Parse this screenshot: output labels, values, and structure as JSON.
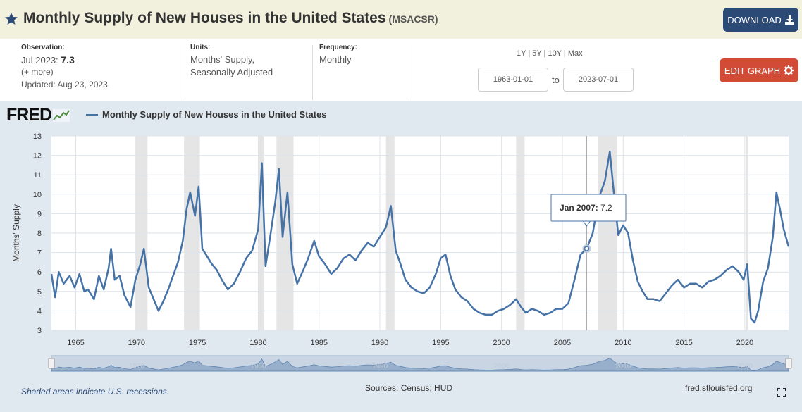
{
  "header": {
    "title": "Monthly Supply of New Houses in the United States",
    "series_id": "(MSACSR)",
    "download_label": "DOWNLOAD"
  },
  "meta": {
    "observation_label": "Observation:",
    "observation_date": "Jul 2023:",
    "observation_value": "7.3",
    "more": "(+ more)",
    "updated": "Updated: Aug 23, 2023",
    "units_label": "Units:",
    "units_line1": "Months' Supply,",
    "units_line2": "Seasonally Adjusted",
    "frequency_label": "Frequency:",
    "frequency": "Monthly"
  },
  "range": {
    "options": [
      "1Y",
      "5Y",
      "10Y",
      "Max"
    ],
    "start": "1963-01-01",
    "to": "to",
    "end": "2023-07-01"
  },
  "edit_label": "EDIT GRAPH",
  "chart_brand": "FRED",
  "footer": {
    "note": "Shaded areas indicate U.S. recessions.",
    "sources": "Sources: Census; HUD",
    "site": "fred.stlouisfed.org"
  },
  "colors": {
    "line": "#4572a7",
    "recession": "#e5e5e5",
    "header_bg": "#f1f1dd",
    "download": "#2c4a76",
    "edit": "#d24b36"
  },
  "chart_data": {
    "type": "line",
    "title": "Monthly Supply of New Houses in the United States",
    "ylabel": "Months' Supply",
    "xlabel": "",
    "ylim": [
      3,
      13
    ],
    "xlim": [
      1963.0,
      2023.6
    ],
    "yticks": [
      3,
      4,
      5,
      6,
      7,
      8,
      9,
      10,
      11,
      12,
      13
    ],
    "xticks": [
      1965,
      1970,
      1975,
      1980,
      1985,
      1990,
      1995,
      2000,
      2005,
      2010,
      2015,
      2020
    ],
    "navigator_ticks": [
      "1970",
      "1980",
      "1990",
      "2000",
      "2010",
      "2020"
    ],
    "grid": true,
    "tooltip": {
      "label": "Jan 2007:",
      "value": "7.2",
      "x": 2007.0
    },
    "recessions": [
      [
        1969.9,
        1970.9
      ],
      [
        1973.9,
        1975.2
      ],
      [
        1980.0,
        1980.5
      ],
      [
        1981.5,
        1982.9
      ],
      [
        1990.5,
        1991.2
      ],
      [
        2001.2,
        2001.9
      ],
      [
        2007.9,
        2009.5
      ],
      [
        2020.1,
        2020.3
      ]
    ],
    "series": [
      {
        "name": "Monthly Supply of New Houses in the United States",
        "points": [
          [
            1963.0,
            5.9
          ],
          [
            1963.3,
            4.7
          ],
          [
            1963.6,
            6.0
          ],
          [
            1964.0,
            5.4
          ],
          [
            1964.5,
            5.8
          ],
          [
            1964.9,
            5.2
          ],
          [
            1965.3,
            5.9
          ],
          [
            1965.7,
            5.0
          ],
          [
            1966.0,
            5.1
          ],
          [
            1966.5,
            4.6
          ],
          [
            1966.9,
            5.8
          ],
          [
            1967.3,
            5.1
          ],
          [
            1967.7,
            6.2
          ],
          [
            1967.9,
            7.2
          ],
          [
            1968.2,
            5.6
          ],
          [
            1968.6,
            5.8
          ],
          [
            1969.0,
            4.8
          ],
          [
            1969.5,
            4.2
          ],
          [
            1969.9,
            5.6
          ],
          [
            1970.3,
            6.4
          ],
          [
            1970.6,
            7.2
          ],
          [
            1971.0,
            5.2
          ],
          [
            1971.4,
            4.6
          ],
          [
            1971.8,
            4.0
          ],
          [
            1972.2,
            4.5
          ],
          [
            1972.6,
            5.1
          ],
          [
            1973.0,
            5.8
          ],
          [
            1973.4,
            6.5
          ],
          [
            1973.8,
            7.6
          ],
          [
            1974.1,
            9.2
          ],
          [
            1974.4,
            10.1
          ],
          [
            1974.8,
            8.9
          ],
          [
            1975.1,
            10.4
          ],
          [
            1975.4,
            7.2
          ],
          [
            1975.8,
            6.8
          ],
          [
            1976.2,
            6.4
          ],
          [
            1976.6,
            6.1
          ],
          [
            1977.0,
            5.6
          ],
          [
            1977.5,
            5.1
          ],
          [
            1978.0,
            5.4
          ],
          [
            1978.5,
            6.0
          ],
          [
            1979.0,
            6.7
          ],
          [
            1979.5,
            7.1
          ],
          [
            1980.0,
            8.2
          ],
          [
            1980.3,
            11.6
          ],
          [
            1980.6,
            6.3
          ],
          [
            1981.0,
            7.9
          ],
          [
            1981.4,
            9.6
          ],
          [
            1981.7,
            11.3
          ],
          [
            1982.0,
            7.8
          ],
          [
            1982.4,
            10.1
          ],
          [
            1982.8,
            6.4
          ],
          [
            1983.2,
            5.4
          ],
          [
            1983.7,
            6.1
          ],
          [
            1984.1,
            6.7
          ],
          [
            1984.6,
            7.6
          ],
          [
            1985.0,
            6.8
          ],
          [
            1985.5,
            6.4
          ],
          [
            1986.0,
            5.9
          ],
          [
            1986.5,
            6.2
          ],
          [
            1987.0,
            6.7
          ],
          [
            1987.5,
            6.9
          ],
          [
            1988.0,
            6.6
          ],
          [
            1988.5,
            7.1
          ],
          [
            1989.0,
            7.5
          ],
          [
            1989.5,
            7.3
          ],
          [
            1990.0,
            7.8
          ],
          [
            1990.5,
            8.3
          ],
          [
            1990.9,
            9.4
          ],
          [
            1991.3,
            7.1
          ],
          [
            1991.7,
            6.4
          ],
          [
            1992.1,
            5.6
          ],
          [
            1992.6,
            5.2
          ],
          [
            1993.1,
            5.0
          ],
          [
            1993.6,
            4.9
          ],
          [
            1994.1,
            5.2
          ],
          [
            1994.6,
            5.9
          ],
          [
            1995.0,
            6.7
          ],
          [
            1995.4,
            6.9
          ],
          [
            1995.8,
            5.8
          ],
          [
            1996.2,
            5.1
          ],
          [
            1996.7,
            4.7
          ],
          [
            1997.2,
            4.5
          ],
          [
            1997.7,
            4.1
          ],
          [
            1998.2,
            3.9
          ],
          [
            1998.7,
            3.8
          ],
          [
            1999.2,
            3.8
          ],
          [
            1999.7,
            4.0
          ],
          [
            2000.2,
            4.1
          ],
          [
            2000.7,
            4.3
          ],
          [
            2001.2,
            4.6
          ],
          [
            2001.6,
            4.2
          ],
          [
            2002.0,
            3.9
          ],
          [
            2002.5,
            4.1
          ],
          [
            2003.0,
            4.0
          ],
          [
            2003.5,
            3.8
          ],
          [
            2004.0,
            3.9
          ],
          [
            2004.5,
            4.1
          ],
          [
            2005.0,
            4.1
          ],
          [
            2005.5,
            4.4
          ],
          [
            2006.0,
            5.6
          ],
          [
            2006.5,
            6.9
          ],
          [
            2007.0,
            7.2
          ],
          [
            2007.5,
            8.0
          ],
          [
            2008.0,
            9.8
          ],
          [
            2008.5,
            10.7
          ],
          [
            2008.9,
            12.2
          ],
          [
            2009.2,
            10.3
          ],
          [
            2009.6,
            7.9
          ],
          [
            2010.0,
            8.4
          ],
          [
            2010.4,
            8.0
          ],
          [
            2010.8,
            6.6
          ],
          [
            2011.2,
            5.5
          ],
          [
            2011.6,
            5.0
          ],
          [
            2012.0,
            4.6
          ],
          [
            2012.5,
            4.6
          ],
          [
            2013.0,
            4.5
          ],
          [
            2013.5,
            4.9
          ],
          [
            2014.0,
            5.3
          ],
          [
            2014.5,
            5.6
          ],
          [
            2015.0,
            5.2
          ],
          [
            2015.5,
            5.4
          ],
          [
            2016.0,
            5.4
          ],
          [
            2016.5,
            5.2
          ],
          [
            2017.0,
            5.5
          ],
          [
            2017.5,
            5.6
          ],
          [
            2018.0,
            5.8
          ],
          [
            2018.5,
            6.1
          ],
          [
            2019.0,
            6.3
          ],
          [
            2019.5,
            6.0
          ],
          [
            2019.9,
            5.6
          ],
          [
            2020.2,
            6.4
          ],
          [
            2020.5,
            3.6
          ],
          [
            2020.8,
            3.4
          ],
          [
            2021.1,
            4.0
          ],
          [
            2021.5,
            5.5
          ],
          [
            2021.9,
            6.2
          ],
          [
            2022.3,
            7.8
          ],
          [
            2022.6,
            10.1
          ],
          [
            2022.9,
            9.2
          ],
          [
            2023.2,
            8.2
          ],
          [
            2023.6,
            7.3
          ]
        ]
      }
    ]
  }
}
